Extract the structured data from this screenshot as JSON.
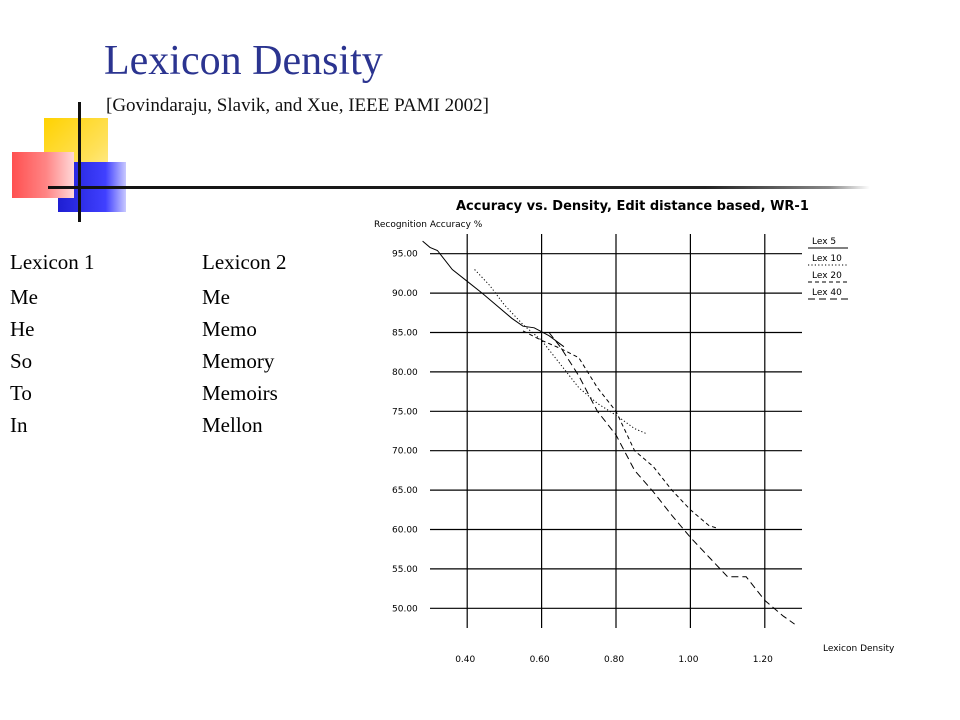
{
  "slide": {
    "title": "Lexicon Density",
    "citation": "[Govindaraju, Slavik, and Xue, IEEE PAMI 2002]",
    "accent_color": "#2b3490"
  },
  "lexicons": [
    {
      "heading": "Lexicon 1",
      "words": [
        "Me",
        "He",
        "So",
        "To",
        "In"
      ]
    },
    {
      "heading": "Lexicon 2",
      "words": [
        "Me",
        "Memo",
        "Memory",
        "Memoirs",
        "Mellon"
      ]
    }
  ],
  "chart_data": {
    "type": "line",
    "title": "Accuracy vs. Density, Edit distance based, WR-1",
    "ylabel": "Recognition Accuracy %",
    "xlabel": "Lexicon Density",
    "xlim": [
      0.3,
      1.3
    ],
    "ylim": [
      47.5,
      97.5
    ],
    "x_ticks": [
      "0.40",
      "0.60",
      "0.80",
      "1.00",
      "1.20"
    ],
    "y_ticks": [
      "50.00",
      "55.00",
      "60.00",
      "65.00",
      "70.00",
      "75.00",
      "80.00",
      "85.00",
      "90.00",
      "95.00"
    ],
    "grid": true,
    "legend_position": "top-right",
    "series": [
      {
        "name": "Lex 5",
        "dash": "solid",
        "x": [
          0.28,
          0.3,
          0.32,
          0.36,
          0.4,
          0.44,
          0.48,
          0.52,
          0.55,
          0.58,
          0.62,
          0.66
        ],
        "y": [
          96.6,
          95.8,
          95.4,
          93.0,
          91.5,
          90.0,
          88.4,
          86.8,
          85.8,
          85.6,
          84.6,
          83.2
        ]
      },
      {
        "name": "Lex 10",
        "dash": "dotted",
        "x": [
          0.42,
          0.46,
          0.5,
          0.55,
          0.6,
          0.65,
          0.7,
          0.75,
          0.8,
          0.85,
          0.88
        ],
        "y": [
          93.0,
          91.0,
          88.5,
          86.0,
          84.0,
          81.0,
          78.0,
          76.0,
          74.5,
          72.8,
          72.2
        ]
      },
      {
        "name": "Lex 20",
        "dash": "dashed",
        "x": [
          0.55,
          0.6,
          0.65,
          0.7,
          0.75,
          0.8,
          0.85,
          0.9,
          0.95,
          1.0,
          1.05,
          1.07
        ],
        "y": [
          85.2,
          84.0,
          83.0,
          81.8,
          78.0,
          75.0,
          70.0,
          68.0,
          65.0,
          62.5,
          60.5,
          60.2
        ]
      },
      {
        "name": "Lex 40",
        "dash": "longdash",
        "x": [
          0.62,
          0.65,
          0.7,
          0.75,
          0.8,
          0.85,
          0.9,
          0.95,
          1.0,
          1.05,
          1.1,
          1.15,
          1.2,
          1.25,
          1.28
        ],
        "y": [
          85.0,
          83.2,
          79.5,
          75.0,
          72.0,
          67.5,
          64.8,
          61.8,
          59.0,
          56.5,
          54.0,
          54.0,
          51.0,
          49.0,
          48.0
        ]
      }
    ]
  }
}
